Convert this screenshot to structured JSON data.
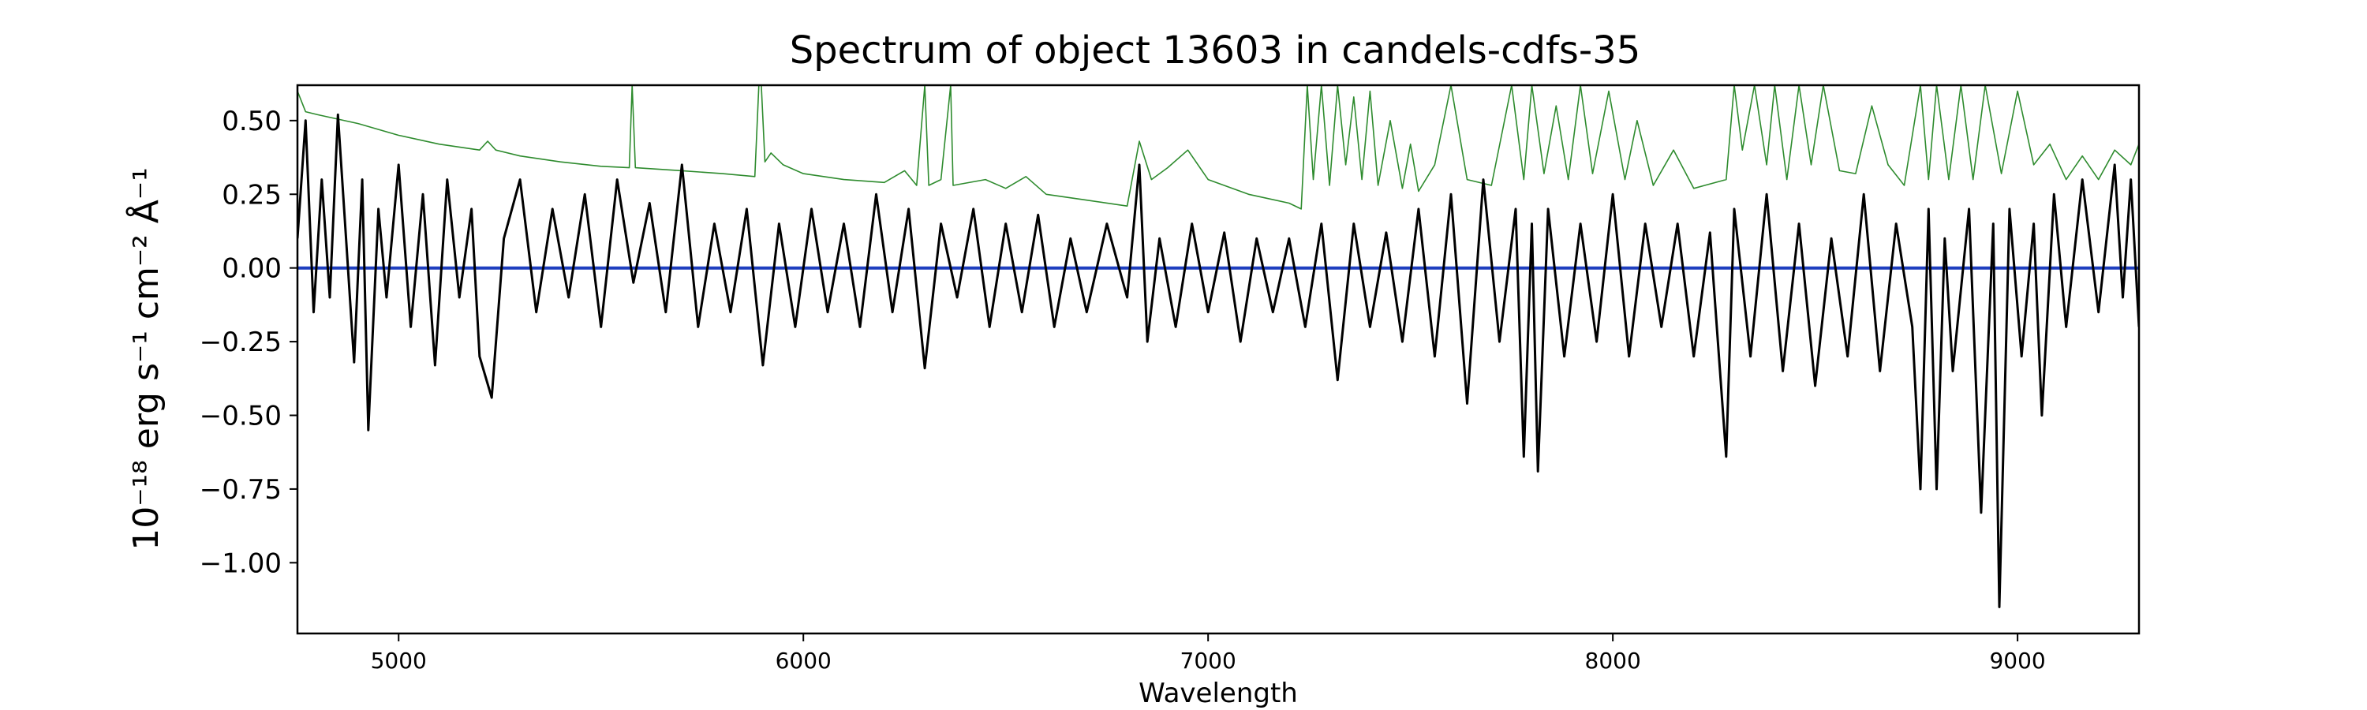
{
  "chart_data": {
    "type": "line",
    "title": "Spectrum of object 13603 in candels-cdfs-35",
    "xlabel": "Wavelength",
    "ylabel": "10⁻¹⁸ erg s⁻¹ cm⁻² Å⁻¹",
    "xlim": [
      4750,
      9300
    ],
    "ylim": [
      -1.24,
      0.62
    ],
    "x_ticks": [
      5000,
      6000,
      7000,
      8000,
      9000
    ],
    "y_ticks": [
      0.5,
      0.25,
      0.0,
      -0.25,
      -0.5,
      -0.75,
      -1.0
    ],
    "y_tick_labels": [
      "0.50",
      "0.25",
      "0.00",
      "−0.25",
      "−0.50",
      "−0.75",
      "−1.00"
    ],
    "grid": false,
    "legend": "none",
    "series": [
      {
        "role": "sky-error",
        "color": "#2e8b2e",
        "points": [
          [
            4750,
            0.6
          ],
          [
            4770,
            0.53
          ],
          [
            4800,
            0.52
          ],
          [
            4900,
            0.49
          ],
          [
            5000,
            0.45
          ],
          [
            5100,
            0.42
          ],
          [
            5200,
            0.4
          ],
          [
            5220,
            0.43
          ],
          [
            5240,
            0.4
          ],
          [
            5300,
            0.38
          ],
          [
            5400,
            0.36
          ],
          [
            5500,
            0.345
          ],
          [
            5570,
            0.34
          ],
          [
            5577,
            0.62
          ],
          [
            5585,
            0.34
          ],
          [
            5700,
            0.33
          ],
          [
            5800,
            0.32
          ],
          [
            5880,
            0.31
          ],
          [
            5890,
            0.62
          ],
          [
            5896,
            0.62
          ],
          [
            5905,
            0.36
          ],
          [
            5920,
            0.39
          ],
          [
            5950,
            0.35
          ],
          [
            6000,
            0.32
          ],
          [
            6100,
            0.3
          ],
          [
            6200,
            0.29
          ],
          [
            6250,
            0.33
          ],
          [
            6280,
            0.28
          ],
          [
            6300,
            0.62
          ],
          [
            6310,
            0.28
          ],
          [
            6340,
            0.3
          ],
          [
            6364,
            0.62
          ],
          [
            6370,
            0.28
          ],
          [
            6450,
            0.3
          ],
          [
            6500,
            0.27
          ],
          [
            6550,
            0.31
          ],
          [
            6600,
            0.25
          ],
          [
            6700,
            0.23
          ],
          [
            6800,
            0.21
          ],
          [
            6830,
            0.43
          ],
          [
            6860,
            0.3
          ],
          [
            6900,
            0.34
          ],
          [
            6950,
            0.4
          ],
          [
            7000,
            0.3
          ],
          [
            7100,
            0.25
          ],
          [
            7200,
            0.22
          ],
          [
            7230,
            0.2
          ],
          [
            7245,
            0.62
          ],
          [
            7260,
            0.3
          ],
          [
            7280,
            0.62
          ],
          [
            7300,
            0.28
          ],
          [
            7320,
            0.62
          ],
          [
            7340,
            0.35
          ],
          [
            7360,
            0.58
          ],
          [
            7380,
            0.3
          ],
          [
            7400,
            0.6
          ],
          [
            7420,
            0.28
          ],
          [
            7450,
            0.5
          ],
          [
            7480,
            0.27
          ],
          [
            7500,
            0.42
          ],
          [
            7520,
            0.26
          ],
          [
            7560,
            0.35
          ],
          [
            7600,
            0.62
          ],
          [
            7640,
            0.3
          ],
          [
            7700,
            0.28
          ],
          [
            7750,
            0.62
          ],
          [
            7780,
            0.3
          ],
          [
            7800,
            0.62
          ],
          [
            7830,
            0.32
          ],
          [
            7860,
            0.55
          ],
          [
            7890,
            0.3
          ],
          [
            7920,
            0.62
          ],
          [
            7950,
            0.32
          ],
          [
            7990,
            0.6
          ],
          [
            8030,
            0.3
          ],
          [
            8060,
            0.5
          ],
          [
            8100,
            0.28
          ],
          [
            8150,
            0.4
          ],
          [
            8200,
            0.27
          ],
          [
            8280,
            0.3
          ],
          [
            8300,
            0.62
          ],
          [
            8320,
            0.4
          ],
          [
            8350,
            0.62
          ],
          [
            8380,
            0.35
          ],
          [
            8400,
            0.62
          ],
          [
            8430,
            0.3
          ],
          [
            8460,
            0.62
          ],
          [
            8490,
            0.35
          ],
          [
            8520,
            0.62
          ],
          [
            8560,
            0.33
          ],
          [
            8600,
            0.32
          ],
          [
            8640,
            0.55
          ],
          [
            8680,
            0.35
          ],
          [
            8720,
            0.28
          ],
          [
            8760,
            0.62
          ],
          [
            8780,
            0.3
          ],
          [
            8800,
            0.62
          ],
          [
            8830,
            0.3
          ],
          [
            8860,
            0.62
          ],
          [
            8890,
            0.3
          ],
          [
            8920,
            0.62
          ],
          [
            8960,
            0.32
          ],
          [
            9000,
            0.6
          ],
          [
            9040,
            0.35
          ],
          [
            9080,
            0.42
          ],
          [
            9120,
            0.3
          ],
          [
            9160,
            0.38
          ],
          [
            9200,
            0.3
          ],
          [
            9240,
            0.4
          ],
          [
            9280,
            0.35
          ],
          [
            9300,
            0.42
          ]
        ]
      },
      {
        "role": "model",
        "color": "#1f3fbf",
        "points": [
          [
            4750,
            0.0
          ],
          [
            9300,
            0.0
          ]
        ]
      },
      {
        "role": "flux",
        "color": "#000000",
        "points": [
          [
            4750,
            0.1
          ],
          [
            4770,
            0.5
          ],
          [
            4790,
            -0.15
          ],
          [
            4810,
            0.3
          ],
          [
            4830,
            -0.1
          ],
          [
            4850,
            0.52
          ],
          [
            4870,
            0.1
          ],
          [
            4890,
            -0.32
          ],
          [
            4910,
            0.3
          ],
          [
            4925,
            -0.55
          ],
          [
            4950,
            0.2
          ],
          [
            4970,
            -0.1
          ],
          [
            5000,
            0.35
          ],
          [
            5030,
            -0.2
          ],
          [
            5060,
            0.25
          ],
          [
            5090,
            -0.33
          ],
          [
            5120,
            0.3
          ],
          [
            5150,
            -0.1
          ],
          [
            5180,
            0.2
          ],
          [
            5200,
            -0.3
          ],
          [
            5230,
            -0.44
          ],
          [
            5260,
            0.1
          ],
          [
            5300,
            0.3
          ],
          [
            5340,
            -0.15
          ],
          [
            5380,
            0.2
          ],
          [
            5420,
            -0.1
          ],
          [
            5460,
            0.25
          ],
          [
            5500,
            -0.2
          ],
          [
            5540,
            0.3
          ],
          [
            5580,
            -0.05
          ],
          [
            5620,
            0.22
          ],
          [
            5660,
            -0.15
          ],
          [
            5700,
            0.35
          ],
          [
            5740,
            -0.2
          ],
          [
            5780,
            0.15
          ],
          [
            5820,
            -0.15
          ],
          [
            5860,
            0.2
          ],
          [
            5900,
            -0.33
          ],
          [
            5940,
            0.15
          ],
          [
            5980,
            -0.2
          ],
          [
            6020,
            0.2
          ],
          [
            6060,
            -0.15
          ],
          [
            6100,
            0.15
          ],
          [
            6140,
            -0.2
          ],
          [
            6180,
            0.25
          ],
          [
            6220,
            -0.15
          ],
          [
            6260,
            0.2
          ],
          [
            6300,
            -0.34
          ],
          [
            6340,
            0.15
          ],
          [
            6380,
            -0.1
          ],
          [
            6420,
            0.2
          ],
          [
            6460,
            -0.2
          ],
          [
            6500,
            0.15
          ],
          [
            6540,
            -0.15
          ],
          [
            6580,
            0.18
          ],
          [
            6620,
            -0.2
          ],
          [
            6660,
            0.1
          ],
          [
            6700,
            -0.15
          ],
          [
            6750,
            0.15
          ],
          [
            6800,
            -0.1
          ],
          [
            6830,
            0.35
          ],
          [
            6850,
            -0.25
          ],
          [
            6880,
            0.1
          ],
          [
            6920,
            -0.2
          ],
          [
            6960,
            0.15
          ],
          [
            7000,
            -0.15
          ],
          [
            7040,
            0.12
          ],
          [
            7080,
            -0.25
          ],
          [
            7120,
            0.1
          ],
          [
            7160,
            -0.15
          ],
          [
            7200,
            0.1
          ],
          [
            7240,
            -0.2
          ],
          [
            7280,
            0.15
          ],
          [
            7320,
            -0.38
          ],
          [
            7360,
            0.15
          ],
          [
            7400,
            -0.2
          ],
          [
            7440,
            0.12
          ],
          [
            7480,
            -0.25
          ],
          [
            7520,
            0.2
          ],
          [
            7560,
            -0.3
          ],
          [
            7600,
            0.25
          ],
          [
            7640,
            -0.46
          ],
          [
            7680,
            0.3
          ],
          [
            7720,
            -0.25
          ],
          [
            7760,
            0.2
          ],
          [
            7780,
            -0.64
          ],
          [
            7800,
            0.15
          ],
          [
            7815,
            -0.69
          ],
          [
            7840,
            0.2
          ],
          [
            7880,
            -0.3
          ],
          [
            7920,
            0.15
          ],
          [
            7960,
            -0.25
          ],
          [
            8000,
            0.25
          ],
          [
            8040,
            -0.3
          ],
          [
            8080,
            0.15
          ],
          [
            8120,
            -0.2
          ],
          [
            8160,
            0.15
          ],
          [
            8200,
            -0.3
          ],
          [
            8240,
            0.12
          ],
          [
            8280,
            -0.64
          ],
          [
            8300,
            0.2
          ],
          [
            8340,
            -0.3
          ],
          [
            8380,
            0.25
          ],
          [
            8420,
            -0.35
          ],
          [
            8460,
            0.15
          ],
          [
            8500,
            -0.4
          ],
          [
            8540,
            0.1
          ],
          [
            8580,
            -0.3
          ],
          [
            8620,
            0.25
          ],
          [
            8660,
            -0.35
          ],
          [
            8700,
            0.15
          ],
          [
            8740,
            -0.2
          ],
          [
            8760,
            -0.75
          ],
          [
            8780,
            0.2
          ],
          [
            8800,
            -0.75
          ],
          [
            8820,
            0.1
          ],
          [
            8840,
            -0.35
          ],
          [
            8880,
            0.2
          ],
          [
            8910,
            -0.83
          ],
          [
            8940,
            0.15
          ],
          [
            8955,
            -1.15
          ],
          [
            8980,
            0.2
          ],
          [
            9010,
            -0.3
          ],
          [
            9040,
            0.15
          ],
          [
            9060,
            -0.5
          ],
          [
            9090,
            0.25
          ],
          [
            9120,
            -0.2
          ],
          [
            9160,
            0.3
          ],
          [
            9200,
            -0.15
          ],
          [
            9240,
            0.35
          ],
          [
            9260,
            -0.1
          ],
          [
            9280,
            0.3
          ],
          [
            9300,
            -0.2
          ]
        ]
      }
    ]
  }
}
